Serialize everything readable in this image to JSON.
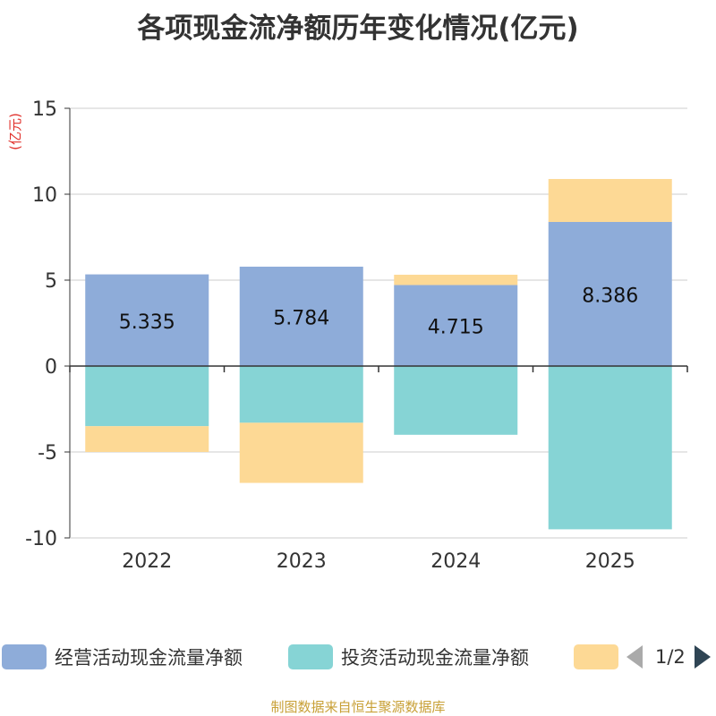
{
  "chart_data": {
    "type": "bar",
    "stacked": true,
    "title": "各项现金流净额历年变化情况(亿元)",
    "ylabel": "(亿元)",
    "xlabel": "",
    "categories": [
      "2022",
      "2023",
      "2024",
      "2025"
    ],
    "ylim": [
      -10,
      15
    ],
    "yticks": [
      -10,
      -5,
      0,
      5,
      10,
      15
    ],
    "grid": true,
    "series": [
      {
        "name": "经营活动现金流量净额",
        "values": [
          5.335,
          5.784,
          4.715,
          8.386
        ],
        "labels": [
          "5.335",
          "5.784",
          "4.715",
          "8.386"
        ],
        "color": "#8eacd9"
      },
      {
        "name": "投资活动现金流量净额",
        "values": [
          -3.5,
          -3.3,
          -4.0,
          -9.5
        ],
        "color": "#86d4d5"
      },
      {
        "name": "",
        "values": [
          -1.5,
          -3.5,
          0.6,
          2.5
        ],
        "color": "#fdd995"
      }
    ]
  },
  "legend": {
    "items": [
      {
        "label": "经营活动现金流量净额",
        "color": "#8eacd9"
      },
      {
        "label": "投资活动现金流量净额",
        "color": "#86d4d5"
      },
      {
        "label": "",
        "color": "#fdd995"
      }
    ],
    "page": "1/2"
  },
  "footer": {
    "source": "制图数据来自恒生聚源数据库"
  }
}
